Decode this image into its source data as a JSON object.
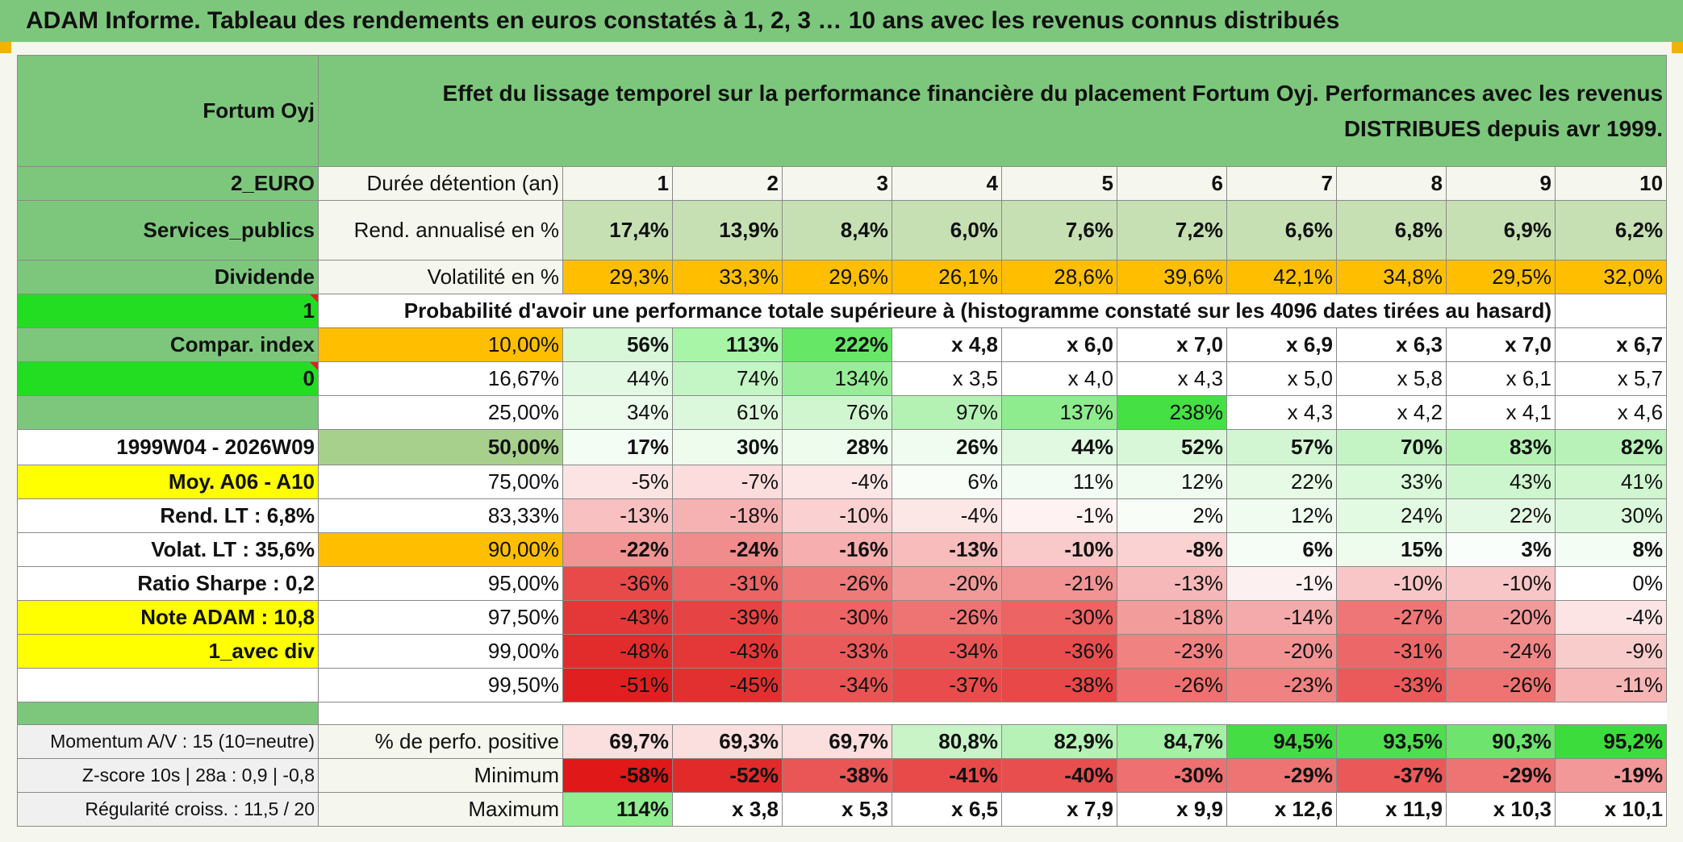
{
  "title": "ADAM Informe. Tableau des rendements en euros constatés à 1, 2, 3 … 10 ans avec les revenus connus distribués",
  "header": {
    "fund_name": "Fortum Oyj",
    "description": "Effet du lissage temporel sur la performance financière du placement Fortum Oyj. Performances avec les revenus DISTRIBUES depuis avr 1999."
  },
  "side": {
    "currency": "2_EURO",
    "sector": "Services_publics",
    "income_type": "Dividende",
    "value_1": "1",
    "compar_index": "Compar. index",
    "value_0": "0",
    "period": "1999W04 - 2026W09",
    "moy": "Moy. A06 - A10",
    "rend_lt": "Rend. LT :   6,8%",
    "volat_lt": "Volat. LT :   35,6%",
    "sharpe": "Ratio Sharpe :    0,2",
    "note": "Note ADAM : 10,8",
    "avec_div": "1_avec div",
    "momentum": "Momentum A/V : 15 (10=neutre)",
    "zscore": "Z-score 10s | 28a : 0,9 | -0,8",
    "regularite": "Régularité croiss. : 11,5 / 20"
  },
  "row_labels": {
    "duree": "Durée détention (an)",
    "rend": "Rend. annualisé en %",
    "volat": "Volatilité en %",
    "proba": "Probabilité d'avoir une performance totale supérieure à (histogramme constaté sur les 4096 dates tirées au hasard)",
    "perf_pos": "% de perfo. positive",
    "minimum": "Minimum",
    "maximum": "Maximum"
  },
  "colors": {
    "title_green": "#7dc77d",
    "orange": "#ffbf00",
    "bright_green": "#22dd22",
    "yellow": "#ffff00",
    "red_text": "#d42020"
  },
  "years": [
    "1",
    "2",
    "3",
    "4",
    "5",
    "6",
    "7",
    "8",
    "9",
    "10"
  ],
  "rend_annualise": [
    "17,4%",
    "13,9%",
    "8,4%",
    "6,0%",
    "7,6%",
    "7,2%",
    "6,6%",
    "6,8%",
    "6,9%",
    "6,2%"
  ],
  "volatilite": [
    "29,3%",
    "33,3%",
    "29,6%",
    "26,1%",
    "28,6%",
    "39,6%",
    "42,1%",
    "34,8%",
    "29,5%",
    "32,0%"
  ],
  "quantiles": [
    {
      "label": "10,00%",
      "values": [
        "56%",
        "113%",
        "222%",
        "x 4,8",
        "x 6,0",
        "x 7,0",
        "x 6,9",
        "x 6,3",
        "x 7,0",
        "x 6,7"
      ]
    },
    {
      "label": "16,67%",
      "values": [
        "44%",
        "74%",
        "134%",
        "x 3,5",
        "x 4,0",
        "x 4,3",
        "x 5,0",
        "x 5,8",
        "x 6,1",
        "x 5,7"
      ]
    },
    {
      "label": "25,00%",
      "values": [
        "34%",
        "61%",
        "76%",
        "97%",
        "137%",
        "238%",
        "x 4,3",
        "x 4,2",
        "x 4,1",
        "x 4,6"
      ]
    },
    {
      "label": "50,00%",
      "values": [
        "17%",
        "30%",
        "28%",
        "26%",
        "44%",
        "52%",
        "57%",
        "70%",
        "83%",
        "82%"
      ]
    },
    {
      "label": "75,00%",
      "values": [
        "-5%",
        "-7%",
        "-4%",
        "6%",
        "11%",
        "12%",
        "22%",
        "33%",
        "43%",
        "41%"
      ]
    },
    {
      "label": "83,33%",
      "values": [
        "-13%",
        "-18%",
        "-10%",
        "-4%",
        "-1%",
        "2%",
        "12%",
        "24%",
        "22%",
        "30%"
      ]
    },
    {
      "label": "90,00%",
      "values": [
        "-22%",
        "-24%",
        "-16%",
        "-13%",
        "-10%",
        "-8%",
        "6%",
        "15%",
        "3%",
        "8%"
      ]
    },
    {
      "label": "95,00%",
      "values": [
        "-36%",
        "-31%",
        "-26%",
        "-20%",
        "-21%",
        "-13%",
        "-1%",
        "-10%",
        "-10%",
        "0%"
      ]
    },
    {
      "label": "97,50%",
      "values": [
        "-43%",
        "-39%",
        "-30%",
        "-26%",
        "-30%",
        "-18%",
        "-14%",
        "-27%",
        "-20%",
        "-4%"
      ]
    },
    {
      "label": "99,00%",
      "values": [
        "-48%",
        "-43%",
        "-33%",
        "-34%",
        "-36%",
        "-23%",
        "-20%",
        "-31%",
        "-24%",
        "-9%"
      ]
    },
    {
      "label": "99,50%",
      "values": [
        "-51%",
        "-45%",
        "-34%",
        "-37%",
        "-38%",
        "-26%",
        "-23%",
        "-33%",
        "-26%",
        "-11%"
      ]
    }
  ],
  "perf_positive": [
    "69,7%",
    "69,3%",
    "69,7%",
    "80,8%",
    "82,9%",
    "84,7%",
    "94,5%",
    "93,5%",
    "90,3%",
    "95,2%"
  ],
  "minimum": [
    "-58%",
    "-52%",
    "-38%",
    "-41%",
    "-40%",
    "-30%",
    "-29%",
    "-37%",
    "-29%",
    "-19%"
  ],
  "maximum": [
    "114%",
    "x 3,8",
    "x 5,3",
    "x 6,5",
    "x 7,9",
    "x 9,9",
    "x 12,6",
    "x 11,9",
    "x 10,3",
    "x 10,1"
  ]
}
